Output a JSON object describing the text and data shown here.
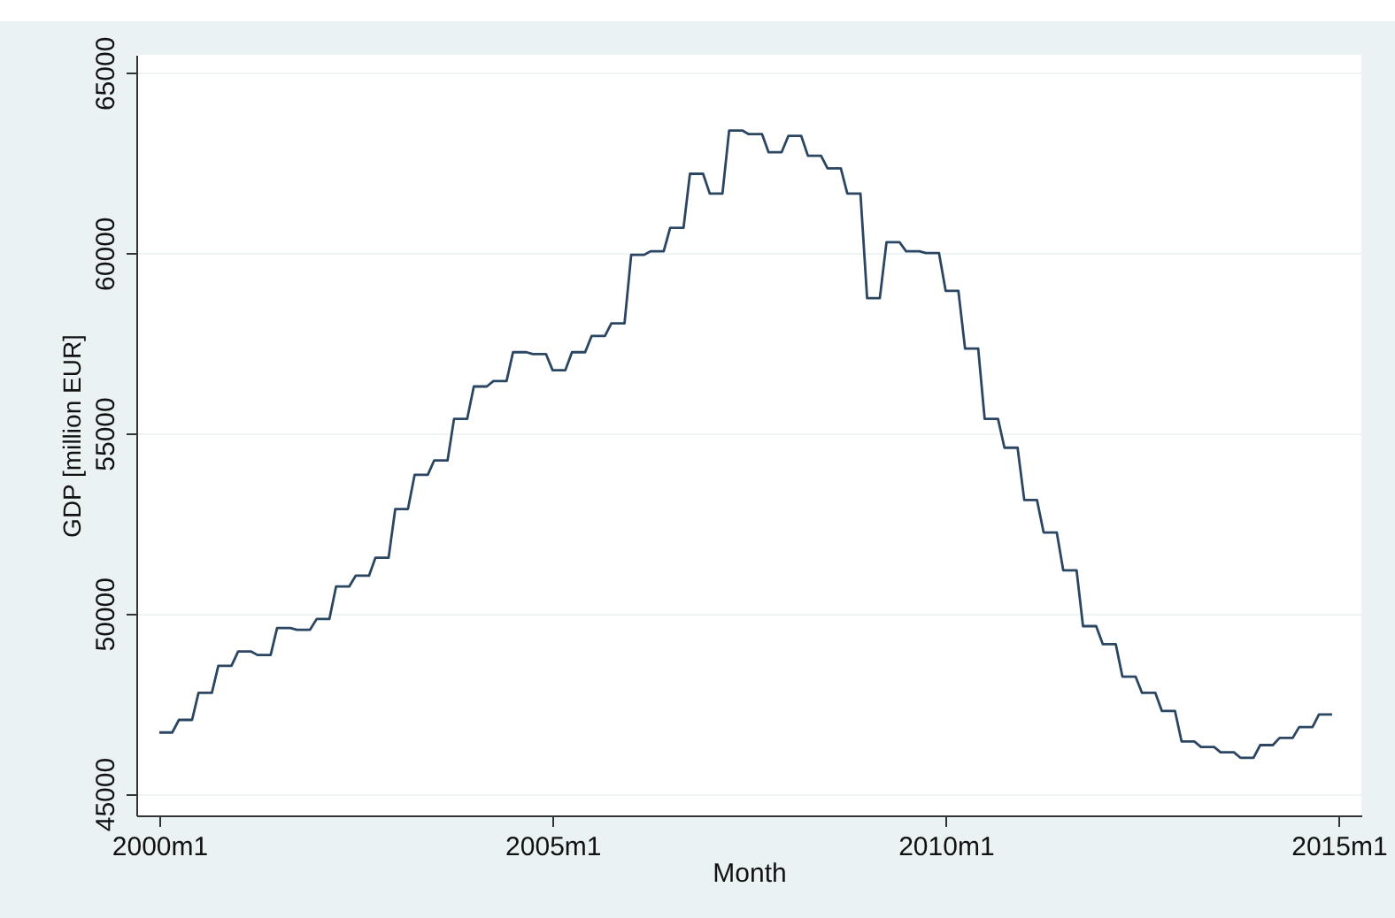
{
  "chart_data": {
    "type": "line",
    "xlabel": "Month",
    "ylabel": "GDP [million EUR]",
    "x": [
      "2000-01",
      "2000-02",
      "2000-03",
      "2000-04",
      "2000-05",
      "2000-06",
      "2000-07",
      "2000-08",
      "2000-09",
      "2000-10",
      "2000-11",
      "2000-12",
      "2001-01",
      "2001-02",
      "2001-03",
      "2001-04",
      "2001-05",
      "2001-06",
      "2001-07",
      "2001-08",
      "2001-09",
      "2001-10",
      "2001-11",
      "2001-12",
      "2002-01",
      "2002-02",
      "2002-03",
      "2002-04",
      "2002-05",
      "2002-06",
      "2002-07",
      "2002-08",
      "2002-09",
      "2002-10",
      "2002-11",
      "2002-12",
      "2003-01",
      "2003-02",
      "2003-03",
      "2003-04",
      "2003-05",
      "2003-06",
      "2003-07",
      "2003-08",
      "2003-09",
      "2003-10",
      "2003-11",
      "2003-12",
      "2004-01",
      "2004-02",
      "2004-03",
      "2004-04",
      "2004-05",
      "2004-06",
      "2004-07",
      "2004-08",
      "2004-09",
      "2004-10",
      "2004-11",
      "2004-12",
      "2005-01",
      "2005-02",
      "2005-03",
      "2005-04",
      "2005-05",
      "2005-06",
      "2005-07",
      "2005-08",
      "2005-09",
      "2005-10",
      "2005-11",
      "2005-12",
      "2006-01",
      "2006-02",
      "2006-03",
      "2006-04",
      "2006-05",
      "2006-06",
      "2006-07",
      "2006-08",
      "2006-09",
      "2006-10",
      "2006-11",
      "2006-12",
      "2007-01",
      "2007-02",
      "2007-03",
      "2007-04",
      "2007-05",
      "2007-06",
      "2007-07",
      "2007-08",
      "2007-09",
      "2007-10",
      "2007-11",
      "2007-12",
      "2008-01",
      "2008-02",
      "2008-03",
      "2008-04",
      "2008-05",
      "2008-06",
      "2008-07",
      "2008-08",
      "2008-09",
      "2008-10",
      "2008-11",
      "2008-12",
      "2009-01",
      "2009-02",
      "2009-03",
      "2009-04",
      "2009-05",
      "2009-06",
      "2009-07",
      "2009-08",
      "2009-09",
      "2009-10",
      "2009-11",
      "2009-12",
      "2010-01",
      "2010-02",
      "2010-03",
      "2010-04",
      "2010-05",
      "2010-06",
      "2010-07",
      "2010-08",
      "2010-09",
      "2010-10",
      "2010-11",
      "2010-12",
      "2011-01",
      "2011-02",
      "2011-03",
      "2011-04",
      "2011-05",
      "2011-06",
      "2011-07",
      "2011-08",
      "2011-09",
      "2011-10",
      "2011-11",
      "2011-12",
      "2012-01",
      "2012-02",
      "2012-03",
      "2012-04",
      "2012-05",
      "2012-06",
      "2012-07",
      "2012-08",
      "2012-09",
      "2012-10",
      "2012-11",
      "2012-12",
      "2013-01",
      "2013-02",
      "2013-03",
      "2013-04",
      "2013-05",
      "2013-06",
      "2013-07",
      "2013-08",
      "2013-09",
      "2013-10",
      "2013-11",
      "2013-12",
      "2014-01",
      "2014-02",
      "2014-03",
      "2014-04",
      "2014-05",
      "2014-06",
      "2014-07",
      "2014-08",
      "2014-09",
      "2014-10",
      "2014-11",
      "2014-12"
    ],
    "series": [
      {
        "color": "#2b4662",
        "values": [
          46700,
          46700,
          46700,
          47050,
          47050,
          47050,
          47800,
          47800,
          47800,
          48550,
          48550,
          48550,
          48950,
          48950,
          48950,
          48850,
          48850,
          48850,
          49600,
          49600,
          49600,
          49550,
          49550,
          49550,
          49850,
          49850,
          49850,
          50750,
          50750,
          50750,
          51050,
          51050,
          51050,
          51550,
          51550,
          51550,
          52900,
          52900,
          52900,
          53850,
          53850,
          53850,
          54250,
          54250,
          54250,
          55400,
          55400,
          55400,
          56300,
          56300,
          56300,
          56450,
          56450,
          56450,
          57250,
          57250,
          57250,
          57200,
          57200,
          57200,
          56750,
          56750,
          56750,
          57250,
          57250,
          57250,
          57700,
          57700,
          57700,
          58050,
          58050,
          58050,
          59950,
          59950,
          59950,
          60050,
          60050,
          60050,
          60700,
          60700,
          60700,
          62200,
          62200,
          62200,
          61650,
          61650,
          61650,
          63400,
          63400,
          63400,
          63300,
          63300,
          63300,
          62800,
          62800,
          62800,
          63250,
          63250,
          63250,
          62700,
          62700,
          62700,
          62350,
          62350,
          62350,
          61650,
          61650,
          61650,
          58750,
          58750,
          58750,
          60300,
          60300,
          60300,
          60050,
          60050,
          60050,
          60000,
          60000,
          60000,
          58950,
          58950,
          58950,
          57350,
          57350,
          57350,
          55400,
          55400,
          55400,
          54600,
          54600,
          54600,
          53150,
          53150,
          53150,
          52250,
          52250,
          52250,
          51200,
          51200,
          51200,
          49650,
          49650,
          49650,
          49150,
          49150,
          49150,
          48250,
          48250,
          48250,
          47800,
          47800,
          47800,
          47300,
          47300,
          47300,
          46450,
          46450,
          46450,
          46300,
          46300,
          46300,
          46150,
          46150,
          46150,
          46000,
          46000,
          46000,
          46350,
          46350,
          46350,
          46550,
          46550,
          46550,
          46850,
          46850,
          46850,
          47200,
          47200,
          47200
        ]
      }
    ],
    "xlim": [
      "1999-09-16",
      "2015-04-16"
    ],
    "xticks": [
      {
        "value": "2000-01",
        "label": "2000m1"
      },
      {
        "value": "2005-01",
        "label": "2005m1"
      },
      {
        "value": "2010-01",
        "label": "2010m1"
      },
      {
        "value": "2015-01",
        "label": "2015m1"
      }
    ],
    "ylim": [
      44400,
      65500
    ],
    "yticks": [
      45000,
      50000,
      55000,
      60000,
      65000
    ],
    "grid": "y",
    "marker": "none",
    "line_style": "solid"
  }
}
